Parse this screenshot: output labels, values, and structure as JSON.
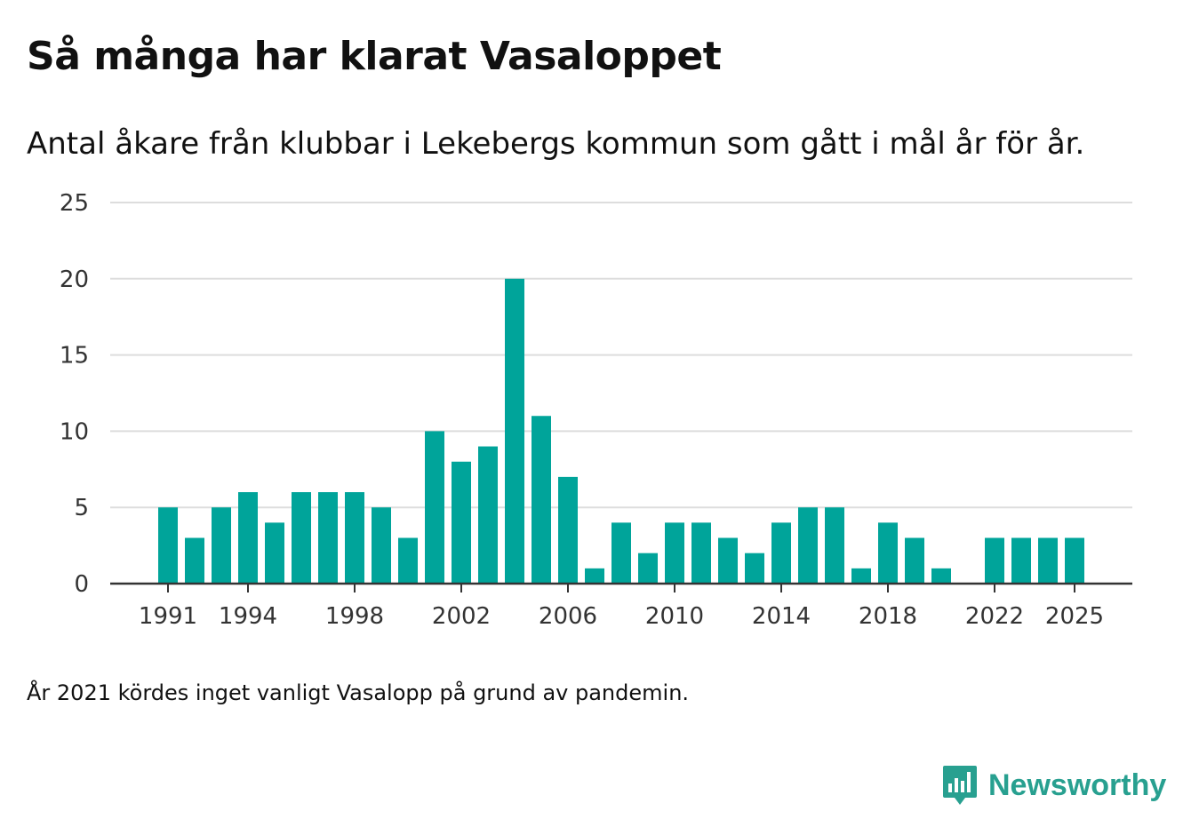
{
  "title": "Så många har klarat Vasaloppet",
  "subtitle": "Antal åkare från klubbar i Lekebergs kommun som gått i mål år för år.",
  "note": "År 2021 kördes inget vanligt Vasalopp på grund av pandemin.",
  "brand": {
    "name": "Newsworthy",
    "icon": "newsworthy-logo-icon"
  },
  "colors": {
    "bar": "#00a49a",
    "grid": "#dddddd",
    "axis": "#333333",
    "brand": "#28a090"
  },
  "chart_data": {
    "type": "bar",
    "title": "Så många har klarat Vasaloppet",
    "xlabel": "",
    "ylabel": "",
    "ylim": [
      0,
      25
    ],
    "yticks": [
      0,
      5,
      10,
      15,
      20,
      25
    ],
    "xticks": [
      "1991",
      "1994",
      "1998",
      "2002",
      "2006",
      "2010",
      "2014",
      "2018",
      "2022",
      "2025"
    ],
    "grid": true,
    "categories": [
      "1991",
      "1992",
      "1993",
      "1994",
      "1995",
      "1996",
      "1997",
      "1998",
      "1999",
      "2000",
      "2001",
      "2002",
      "2003",
      "2004",
      "2005",
      "2006",
      "2007",
      "2008",
      "2009",
      "2010",
      "2011",
      "2012",
      "2013",
      "2014",
      "2015",
      "2016",
      "2017",
      "2018",
      "2019",
      "2020",
      "2021",
      "2022",
      "2023",
      "2024",
      "2025"
    ],
    "values": [
      5,
      3,
      5,
      6,
      4,
      6,
      6,
      6,
      5,
      3,
      10,
      8,
      9,
      20,
      11,
      7,
      1,
      4,
      2,
      4,
      4,
      3,
      2,
      4,
      5,
      5,
      1,
      4,
      3,
      1,
      null,
      3,
      3,
      3,
      3
    ]
  }
}
